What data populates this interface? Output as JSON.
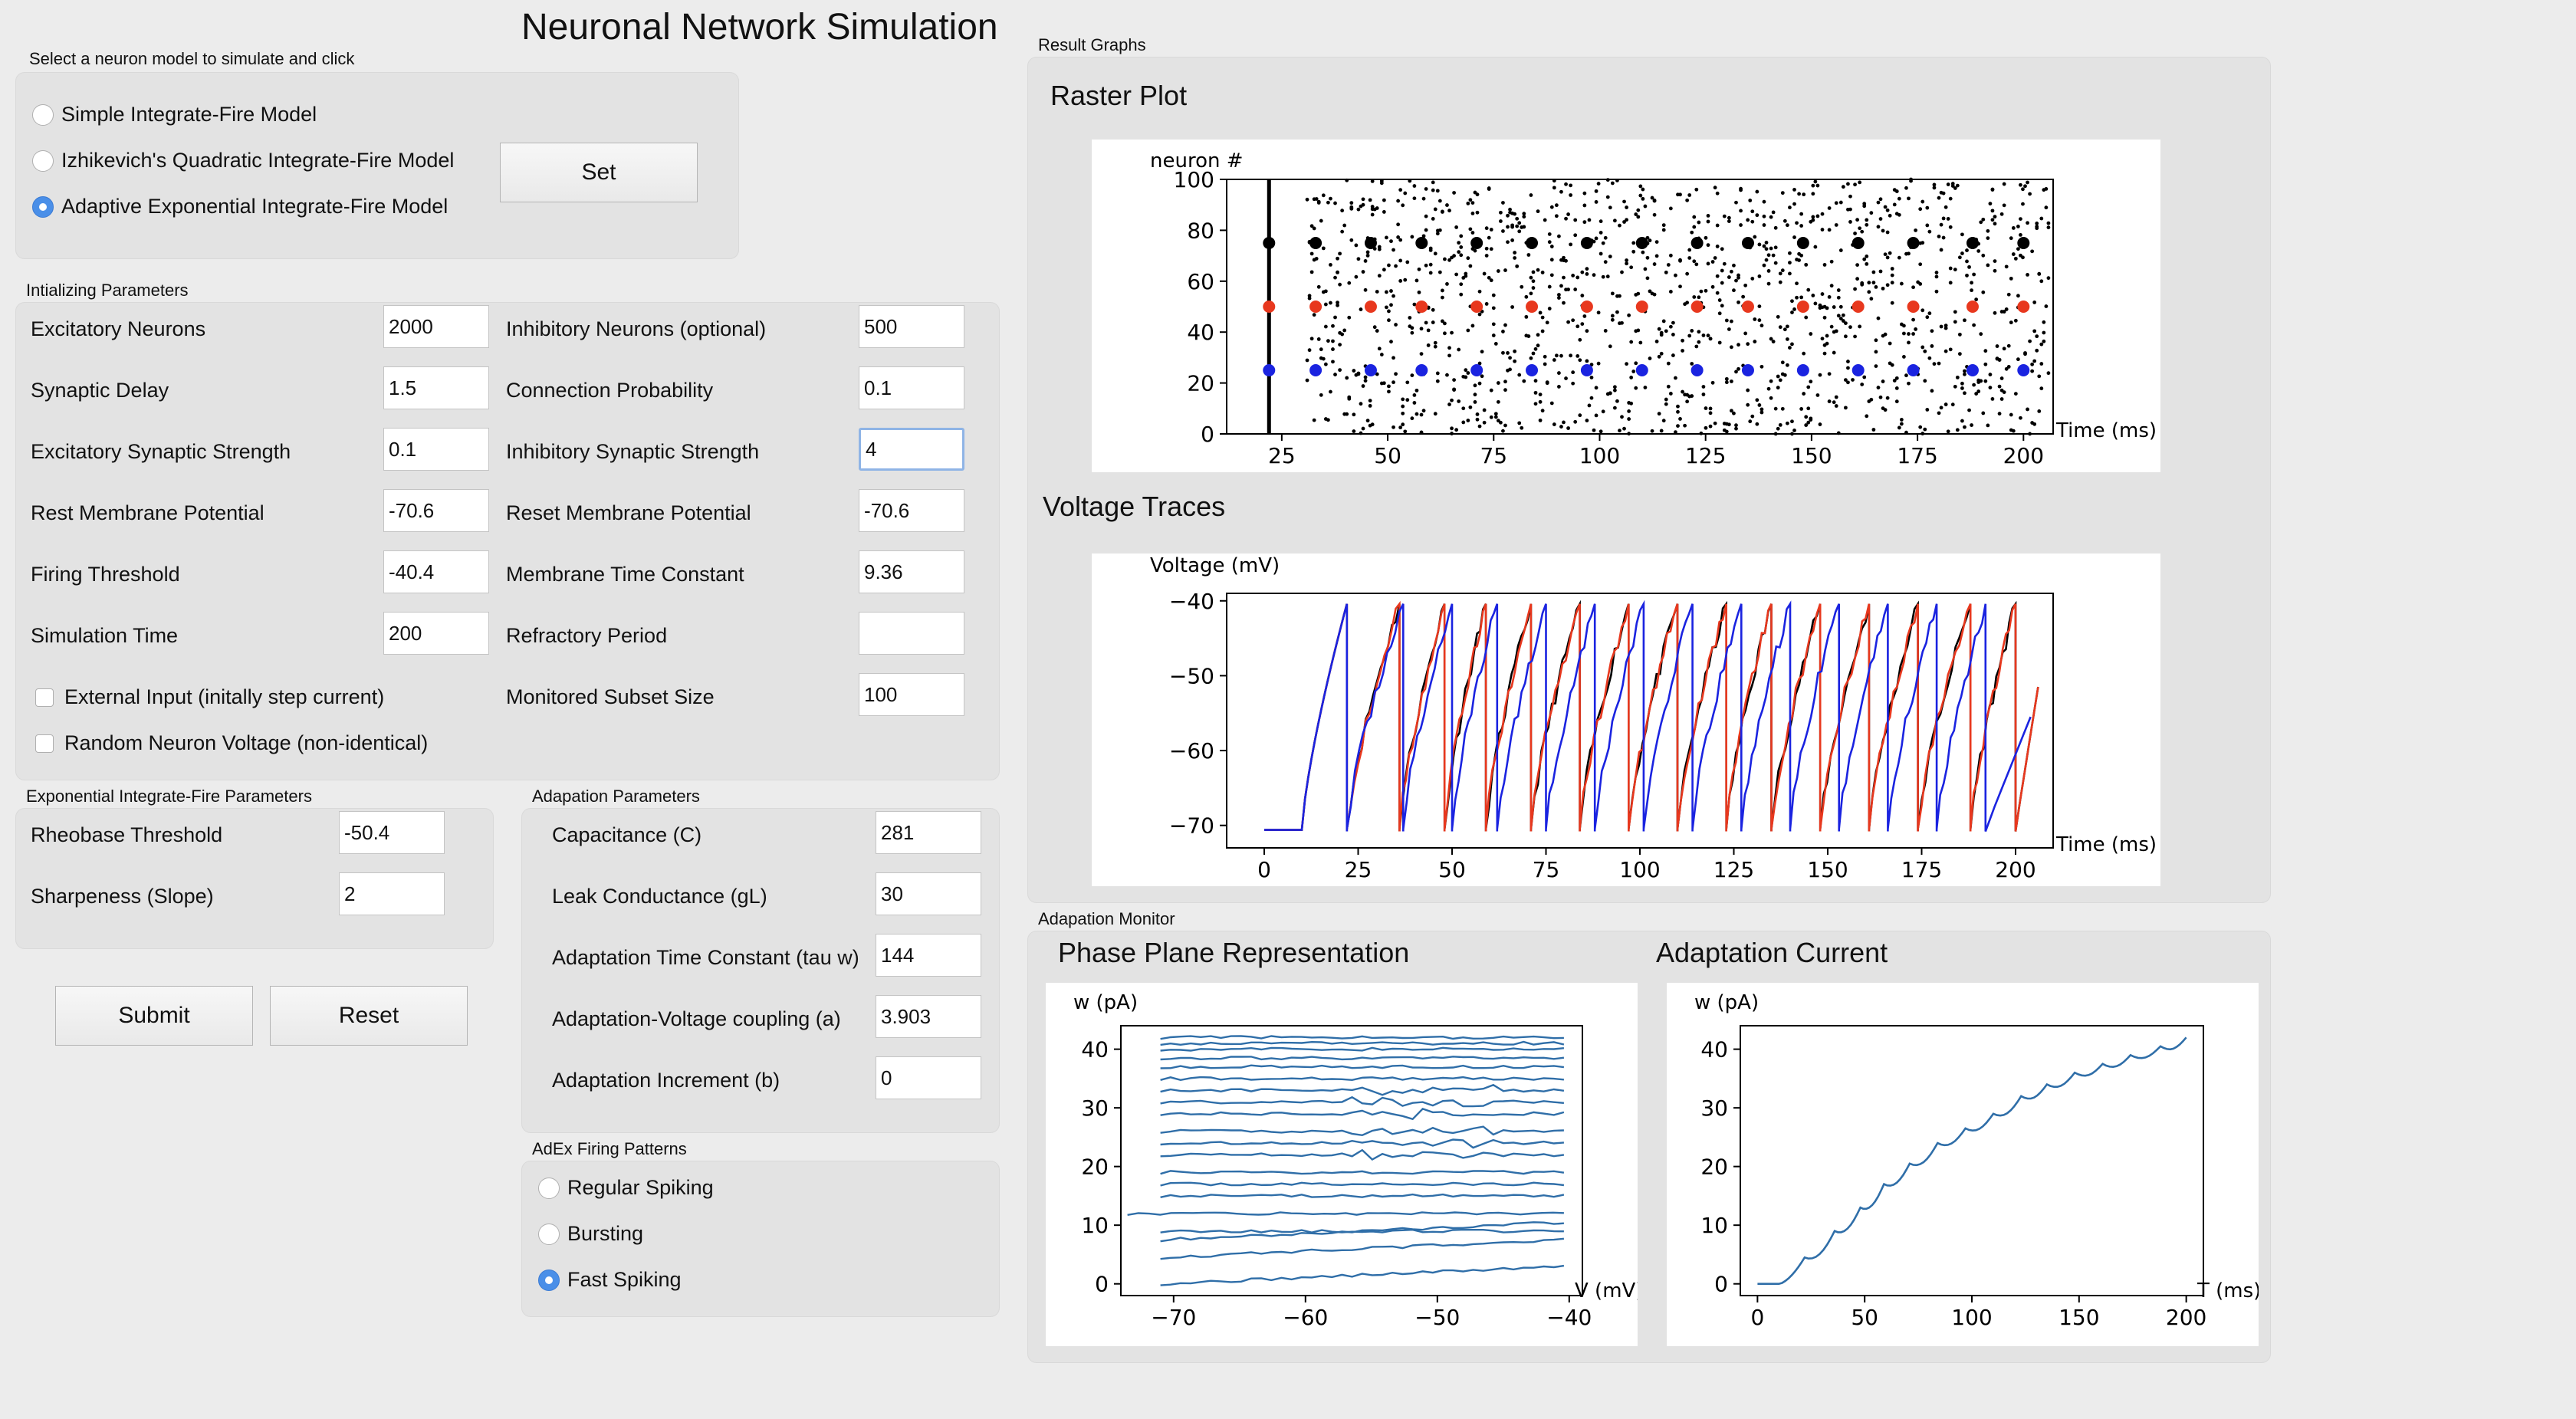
{
  "app_title": "Neuronal Network Simulation",
  "model_select": {
    "caption": "Select a neuron model to simulate and click",
    "options": [
      {
        "label": "Simple Integrate-Fire Model",
        "selected": false
      },
      {
        "label": "Izhikevich's Quadratic Integrate-Fire Model",
        "selected": false
      },
      {
        "label": "Adaptive Exponential Integrate-Fire Model",
        "selected": true
      }
    ],
    "set_label": "Set"
  },
  "init_params": {
    "caption": "Intializing Parameters",
    "left": [
      {
        "label": "Excitatory Neurons",
        "value": "2000"
      },
      {
        "label": "Synaptic Delay",
        "value": "1.5"
      },
      {
        "label": "Excitatory Synaptic Strength",
        "value": "0.1"
      },
      {
        "label": "Rest Membrane Potential",
        "value": "-70.6"
      },
      {
        "label": "Firing Threshold",
        "value": "-40.4"
      },
      {
        "label": "Simulation Time",
        "value": "200"
      }
    ],
    "right": [
      {
        "label": "Inhibitory Neurons (optional)",
        "value": "500"
      },
      {
        "label": "Connection Probability",
        "value": "0.1"
      },
      {
        "label": "Inhibitory Synaptic Strength",
        "value": "4"
      },
      {
        "label": "Reset Membrane Potential",
        "value": "-70.6"
      },
      {
        "label": "Membrane Time Constant",
        "value": "9.36"
      },
      {
        "label": "Refractory Period",
        "value": ""
      },
      {
        "label": "Monitored Subset Size",
        "value": "100"
      }
    ],
    "checks": [
      {
        "label": "External Input (initally step current)",
        "checked": false
      },
      {
        "label": "Random Neuron Voltage (non-identical)",
        "checked": false
      }
    ]
  },
  "exp_params": {
    "caption": "Exponential Integrate-Fire Parameters",
    "items": [
      {
        "label": "Rheobase Threshold",
        "value": "-50.4"
      },
      {
        "label": "Sharpeness (Slope)",
        "value": "2"
      }
    ]
  },
  "adapt_params": {
    "caption": "Adapation Parameters",
    "items": [
      {
        "label": "Capacitance (C)",
        "value": "281"
      },
      {
        "label": "Leak Conductance (gL)",
        "value": "30"
      },
      {
        "label": "Adaptation Time Constant (tau w)",
        "value": "144"
      },
      {
        "label": "Adaptation-Voltage coupling (a)",
        "value": "3.903"
      },
      {
        "label": "Adaptation Increment (b)",
        "value": "0"
      }
    ]
  },
  "firing_patterns": {
    "caption": "AdEx Firing Patterns",
    "options": [
      {
        "label": "Regular Spiking",
        "selected": false
      },
      {
        "label": "Bursting",
        "selected": false
      },
      {
        "label": "Fast Spiking",
        "selected": true
      }
    ]
  },
  "buttons": {
    "submit": "Submit",
    "reset": "Reset"
  },
  "results": {
    "caption": "Result Graphs",
    "raster": {
      "title": "Raster Plot",
      "ylabel": "neuron #",
      "xlabel": "Time (ms)",
      "xticks": [
        "25",
        "50",
        "75",
        "100",
        "125",
        "150",
        "175",
        "200"
      ],
      "yticks": [
        "0",
        "20",
        "40",
        "60",
        "80",
        "100"
      ]
    },
    "voltage": {
      "title": "Voltage Traces",
      "ylabel": "Voltage (mV)",
      "xlabel": "Time (ms)",
      "xticks": [
        "0",
        "25",
        "50",
        "75",
        "100",
        "125",
        "150",
        "175",
        "200"
      ],
      "yticks": [
        "−70",
        "−60",
        "−50",
        "−40"
      ]
    }
  },
  "adaptation": {
    "caption": "Adapation Monitor",
    "phase": {
      "title": "Phase Plane Representation",
      "ylabel": "w (pA)",
      "xlabel": "V (mV)",
      "xticks": [
        "−70",
        "−60",
        "−50",
        "−40"
      ],
      "yticks": [
        "0",
        "10",
        "20",
        "30",
        "40"
      ]
    },
    "current": {
      "title": "Adaptation Current",
      "ylabel": "w (pA)",
      "xlabel": "T (ms)",
      "xticks": [
        "0",
        "50",
        "100",
        "150",
        "200"
      ],
      "yticks": [
        "0",
        "10",
        "20",
        "30",
        "40"
      ]
    }
  },
  "chart_data": [
    {
      "type": "scatter",
      "title": "Raster Plot",
      "xlabel": "Time (ms)",
      "ylabel": "neuron #",
      "xlim": [
        12,
        207
      ],
      "ylim": [
        0,
        100
      ],
      "series": [
        {
          "name": "monitored neuron 75",
          "color": "#000000",
          "x": [
            22,
            33,
            46,
            58,
            71,
            84,
            97,
            110,
            123,
            135,
            148,
            161,
            174,
            188,
            200
          ],
          "y": [
            75,
            75,
            75,
            75,
            75,
            75,
            75,
            75,
            75,
            75,
            75,
            75,
            75,
            75,
            75
          ]
        },
        {
          "name": "monitored neuron 50",
          "color": "#e8381e",
          "x": [
            22,
            33,
            46,
            58,
            71,
            84,
            97,
            110,
            123,
            135,
            148,
            161,
            174,
            188,
            200
          ],
          "y": [
            50,
            50,
            50,
            50,
            50,
            50,
            50,
            50,
            50,
            50,
            50,
            50,
            50,
            50,
            50
          ]
        },
        {
          "name": "monitored neuron 25",
          "color": "#1a23e0",
          "x": [
            22,
            33,
            46,
            58,
            71,
            84,
            97,
            110,
            123,
            135,
            148,
            161,
            174,
            188,
            200
          ],
          "y": [
            25,
            25,
            25,
            25,
            25,
            25,
            25,
            25,
            25,
            25,
            25,
            25,
            25,
            25,
            25
          ]
        }
      ]
    },
    {
      "type": "line",
      "title": "Voltage Traces",
      "xlabel": "Time (ms)",
      "ylabel": "Voltage (mV)",
      "xlim": [
        -10,
        210
      ],
      "ylim": [
        -73,
        -39
      ],
      "series": [
        {
          "name": "black trace",
          "color": "#000000",
          "spikes": [
            22,
            36,
            48,
            59,
            71,
            84,
            97,
            110,
            123,
            135,
            148,
            161,
            174,
            188,
            200
          ]
        },
        {
          "name": "red trace",
          "color": "#e8381e",
          "spikes": [
            22,
            36,
            48,
            59,
            71,
            84,
            97,
            110,
            123,
            135,
            148,
            161,
            174,
            188,
            200
          ]
        },
        {
          "name": "blue trace",
          "color": "#1a23e0",
          "spikes": [
            22,
            37,
            50,
            62,
            75,
            88,
            101,
            114,
            127,
            140,
            153,
            166,
            179,
            192
          ]
        }
      ],
      "v_rest": -70.6,
      "v_peak": -40.4
    },
    {
      "type": "line",
      "title": "Phase Plane Representation",
      "xlabel": "V (mV)",
      "ylabel": "w (pA)",
      "xlim": [
        -74,
        -39
      ],
      "ylim": [
        -2,
        44
      ],
      "w_levels": [
        0,
        4.5,
        7.5,
        9,
        12,
        15,
        17,
        19,
        22,
        24,
        26,
        29,
        31,
        33,
        35,
        37,
        38.5,
        40,
        41,
        42
      ]
    },
    {
      "type": "line",
      "title": "Adaptation Current",
      "xlabel": "T (ms)",
      "ylabel": "w (pA)",
      "xlim": [
        -8,
        208
      ],
      "ylim": [
        -2,
        44
      ],
      "x": [
        0,
        10,
        22,
        36,
        48,
        59,
        71,
        84,
        97,
        110,
        123,
        135,
        148,
        161,
        174,
        188,
        200
      ],
      "y": [
        0,
        0,
        4.5,
        9,
        13,
        17,
        20.5,
        24,
        26.5,
        29,
        32,
        34,
        36,
        37.5,
        39,
        40.5,
        42
      ]
    }
  ]
}
